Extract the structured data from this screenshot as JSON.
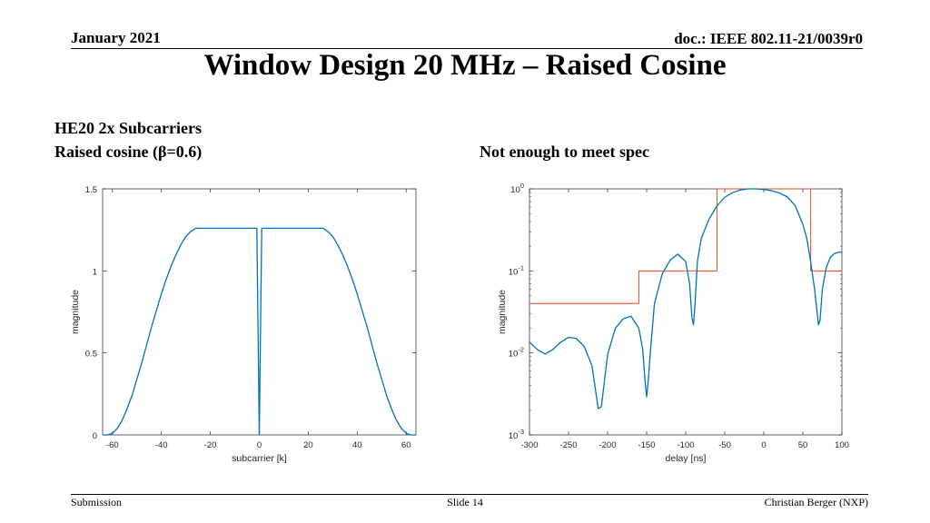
{
  "header": {
    "date": "January 2021",
    "doc": "doc.: IEEE 802.11-21/0039r0"
  },
  "title": "Window Design 20 MHz – Raised Cosine",
  "subtitles": {
    "line1": "HE20 2x Subcarriers",
    "line2": "Raised cosine (β=0.6)",
    "right": "Not enough to meet spec"
  },
  "footer": {
    "left": "Submission",
    "center": "Slide 14",
    "right": "Christian Berger (NXP)"
  },
  "colors": {
    "curve": "#0072bd",
    "spec": "#d95319",
    "axis": "#262626"
  },
  "chart_data": [
    {
      "type": "line",
      "xlabel": "subcarrier [k]",
      "ylabel": "magnitude",
      "xlim": [
        -64,
        64
      ],
      "ylim": [
        0,
        1.5
      ],
      "xticks": [
        -60,
        -40,
        -20,
        0,
        20,
        40,
        60
      ],
      "yticks": [
        0,
        0.5,
        1,
        1.5
      ],
      "ytick_labels": [
        "0",
        "0.5",
        "1",
        "1.5"
      ],
      "series": [
        {
          "x": [
            -64,
            -62,
            -60,
            -58,
            -56,
            -54,
            -52,
            -50,
            -48,
            -46,
            -44,
            -42,
            -40,
            -38,
            -36,
            -34,
            -32,
            -30,
            -28,
            -26,
            -24,
            -2,
            -1,
            0,
            1,
            2,
            24,
            26,
            28,
            30,
            32,
            34,
            36,
            38,
            40,
            42,
            44,
            46,
            48,
            50,
            52,
            54,
            56,
            58,
            60,
            62,
            64
          ],
          "y": [
            0,
            0,
            0.01,
            0.04,
            0.09,
            0.16,
            0.24,
            0.34,
            0.44,
            0.55,
            0.66,
            0.76,
            0.86,
            0.95,
            1.03,
            1.1,
            1.16,
            1.21,
            1.24,
            1.26,
            1.26,
            1.26,
            1.26,
            0,
            1.26,
            1.26,
            1.26,
            1.26,
            1.24,
            1.21,
            1.16,
            1.1,
            1.03,
            0.95,
            0.86,
            0.76,
            0.66,
            0.55,
            0.44,
            0.34,
            0.24,
            0.16,
            0.09,
            0.04,
            0.01,
            0,
            0
          ]
        }
      ]
    },
    {
      "type": "line",
      "xlabel": "delay [ns]",
      "ylabel": "magnitude",
      "yscale": "log",
      "xlim": [
        -300,
        100
      ],
      "ylim": [
        0.001,
        1
      ],
      "xticks": [
        -300,
        -250,
        -200,
        -150,
        -100,
        -50,
        0,
        50,
        100
      ],
      "yticks": [
        0.001,
        0.01,
        0.1,
        1
      ],
      "ytick_labels": [
        [
          "10",
          "-3"
        ],
        [
          "10",
          "-2"
        ],
        [
          "10",
          "-1"
        ],
        [
          "10",
          "0"
        ]
      ],
      "series": [
        {
          "x": [
            -300,
            -290,
            -280,
            -270,
            -260,
            -250,
            -240,
            -230,
            -220,
            -212,
            -208,
            -200,
            -190,
            -180,
            -170,
            -160,
            -155,
            -152,
            -150,
            -148,
            -145,
            -140,
            -130,
            -120,
            -110,
            -100,
            -95,
            -92,
            -90,
            -88,
            -85,
            -80,
            -70,
            -60,
            -50,
            -40,
            -30,
            -20,
            -10,
            0,
            10,
            20,
            30,
            40,
            50,
            55,
            60,
            65,
            70,
            72,
            75,
            80,
            85,
            90,
            95,
            100
          ],
          "y": [
            0.0135,
            0.011,
            0.0097,
            0.011,
            0.0135,
            0.0155,
            0.015,
            0.012,
            0.007,
            0.0021,
            0.0022,
            0.0095,
            0.02,
            0.026,
            0.028,
            0.02,
            0.011,
            0.0045,
            0.0029,
            0.0045,
            0.011,
            0.04,
            0.092,
            0.135,
            0.16,
            0.13,
            0.07,
            0.027,
            0.022,
            0.04,
            0.13,
            0.25,
            0.43,
            0.62,
            0.79,
            0.9,
            0.97,
            1.0,
            1.0,
            0.98,
            0.95,
            0.89,
            0.8,
            0.63,
            0.37,
            0.25,
            0.13,
            0.06,
            0.022,
            0.025,
            0.06,
            0.11,
            0.145,
            0.162,
            0.168,
            0.17
          ]
        },
        {
          "x": [
            -300,
            -160,
            -160,
            -60,
            -60,
            60,
            60,
            100
          ],
          "y": [
            0.04,
            0.04,
            0.1,
            0.1,
            1,
            1,
            0.1,
            0.1
          ]
        }
      ]
    }
  ]
}
